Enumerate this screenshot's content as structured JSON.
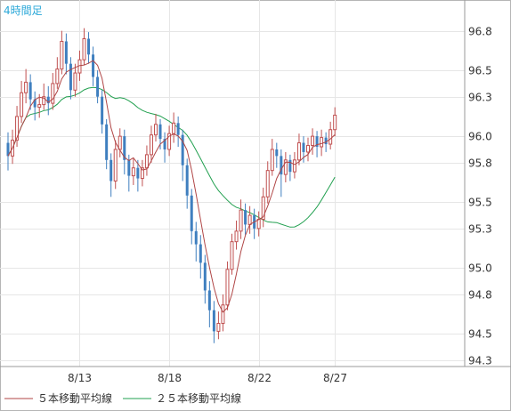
{
  "chart_data": {
    "type": "candlestick",
    "timeframe_label": "4時間足",
    "ylim": [
      94.3,
      97.0
    ],
    "y_ticks": [
      "96.8",
      "96.5",
      "96.3",
      "96.0",
      "95.8",
      "95.5",
      "95.3",
      "95.0",
      "94.8",
      "94.5",
      "94.3"
    ],
    "y_tick_values": [
      96.8,
      96.5,
      96.3,
      96.0,
      95.8,
      95.5,
      95.3,
      95.0,
      94.8,
      94.5,
      94.3
    ],
    "x_ticks": [
      "8/13",
      "8/18",
      "8/22",
      "8/27"
    ],
    "x_tick_index": [
      16,
      36,
      56,
      73
    ],
    "grid": true,
    "up_color": "#c05050",
    "down_color": "#3f7fbf",
    "ma5_color": "#b04646",
    "ma25_color": "#22a050",
    "legend": [
      {
        "label": "５本移動平均線",
        "color": "#b04646"
      },
      {
        "label": "２５本移動平均線",
        "color": "#22a050"
      }
    ],
    "candles": [
      [
        95.95,
        95.85,
        96.03,
        95.74
      ],
      [
        95.85,
        95.97,
        96.05,
        95.79
      ],
      [
        95.97,
        96.15,
        96.23,
        95.92
      ],
      [
        96.15,
        96.33,
        96.42,
        96.1
      ],
      [
        96.33,
        96.41,
        96.51,
        96.25
      ],
      [
        96.41,
        96.28,
        96.47,
        96.2
      ],
      [
        96.28,
        96.22,
        96.34,
        96.12
      ],
      [
        96.22,
        96.24,
        96.32,
        96.14
      ],
      [
        96.24,
        96.3,
        96.4,
        96.2
      ],
      [
        96.3,
        96.25,
        96.38,
        96.16
      ],
      [
        96.25,
        96.4,
        96.48,
        96.2
      ],
      [
        96.4,
        96.51,
        96.6,
        96.36
      ],
      [
        96.51,
        96.72,
        96.8,
        96.47
      ],
      [
        96.72,
        96.55,
        96.78,
        96.47
      ],
      [
        96.55,
        96.35,
        96.6,
        96.28
      ],
      [
        96.35,
        96.48,
        96.55,
        96.3
      ],
      [
        96.48,
        96.58,
        96.65,
        96.42
      ],
      [
        96.58,
        96.74,
        96.82,
        96.54
      ],
      [
        96.74,
        96.62,
        96.79,
        96.55
      ],
      [
        96.62,
        96.45,
        96.68,
        96.38
      ],
      [
        96.45,
        96.3,
        96.5,
        96.25
      ],
      [
        96.3,
        96.09,
        96.35,
        96.02
      ],
      [
        96.09,
        95.82,
        96.13,
        95.75
      ],
      [
        95.82,
        95.66,
        95.87,
        95.54
      ],
      [
        95.66,
        95.9,
        95.97,
        95.6
      ],
      [
        95.9,
        96.0,
        96.06,
        95.84
      ],
      [
        96.0,
        95.82,
        96.05,
        95.71
      ],
      [
        95.82,
        95.7,
        95.86,
        95.58
      ],
      [
        95.7,
        95.76,
        95.83,
        95.63
      ],
      [
        95.76,
        95.68,
        95.82,
        95.58
      ],
      [
        95.68,
        95.76,
        95.82,
        95.62
      ],
      [
        95.76,
        95.86,
        95.93,
        95.7
      ],
      [
        95.86,
        96.01,
        96.08,
        95.8
      ],
      [
        96.01,
        96.09,
        96.17,
        95.96
      ],
      [
        96.09,
        95.98,
        96.13,
        95.9
      ],
      [
        95.98,
        95.9,
        96.03,
        95.8
      ],
      [
        95.9,
        96.02,
        96.08,
        95.85
      ],
      [
        96.02,
        96.1,
        96.18,
        95.95
      ],
      [
        96.1,
        96.01,
        96.15,
        95.92
      ],
      [
        96.01,
        95.78,
        96.05,
        95.66
      ],
      [
        95.78,
        95.55,
        95.83,
        95.45
      ],
      [
        95.55,
        95.28,
        95.6,
        95.18
      ],
      [
        95.28,
        95.18,
        95.35,
        95.05
      ],
      [
        95.18,
        95.04,
        95.25,
        94.92
      ],
      [
        95.04,
        94.83,
        95.1,
        94.73
      ],
      [
        94.83,
        94.68,
        94.9,
        94.55
      ],
      [
        94.68,
        94.52,
        94.75,
        94.43
      ],
      [
        94.52,
        94.58,
        94.67,
        94.46
      ],
      [
        94.58,
        94.72,
        94.8,
        94.52
      ],
      [
        94.72,
        94.99,
        95.05,
        94.68
      ],
      [
        94.99,
        95.2,
        95.26,
        94.95
      ],
      [
        95.2,
        95.28,
        95.36,
        95.14
      ],
      [
        95.28,
        95.44,
        95.52,
        95.22
      ],
      [
        95.44,
        95.33,
        95.49,
        95.25
      ],
      [
        95.33,
        95.4,
        95.47,
        95.26
      ],
      [
        95.4,
        95.3,
        95.45,
        95.22
      ],
      [
        95.3,
        95.37,
        95.43,
        95.24
      ],
      [
        95.37,
        95.54,
        95.61,
        95.31
      ],
      [
        95.54,
        95.74,
        95.81,
        95.49
      ],
      [
        95.74,
        95.9,
        95.98,
        95.7
      ],
      [
        95.9,
        95.85,
        95.95,
        95.76
      ],
      [
        95.85,
        95.71,
        95.9,
        95.54
      ],
      [
        95.71,
        95.82,
        95.88,
        95.65
      ],
      [
        95.82,
        95.73,
        95.86,
        95.66
      ],
      [
        95.73,
        95.82,
        95.88,
        95.68
      ],
      [
        95.82,
        95.95,
        96.02,
        95.78
      ],
      [
        95.95,
        95.88,
        96.0,
        95.8
      ],
      [
        95.88,
        95.93,
        95.99,
        95.81
      ],
      [
        95.93,
        96.0,
        96.06,
        95.86
      ],
      [
        96.0,
        95.92,
        96.04,
        95.84
      ],
      [
        95.92,
        95.99,
        96.05,
        95.85
      ],
      [
        95.99,
        95.94,
        96.03,
        95.88
      ],
      [
        95.94,
        96.05,
        96.11,
        95.9
      ],
      [
        96.05,
        96.16,
        96.22,
        96.0
      ]
    ]
  }
}
